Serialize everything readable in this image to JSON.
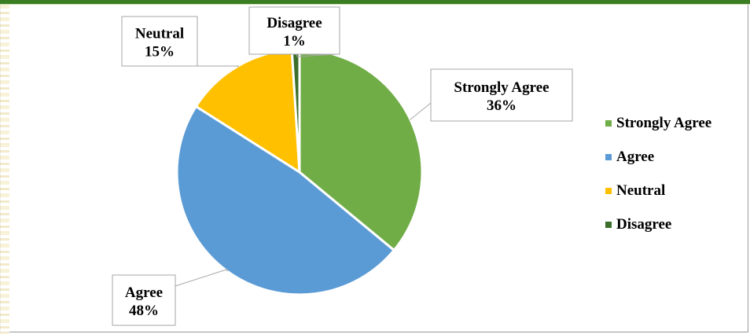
{
  "chart_data": {
    "type": "pie",
    "title": "",
    "categories": [
      "Strongly Agree",
      "Agree",
      "Neutral",
      "Disagree"
    ],
    "values": [
      36,
      48,
      15,
      1
    ],
    "value_labels": [
      "36%",
      "48%",
      "15%",
      "1%"
    ],
    "colors": [
      "#70ad47",
      "#5b9bd5",
      "#ffc000",
      "#3b6f2a"
    ],
    "start_angle_deg": 0,
    "direction": "clockwise",
    "legend_position": "right",
    "data_labels": "callout"
  }
}
